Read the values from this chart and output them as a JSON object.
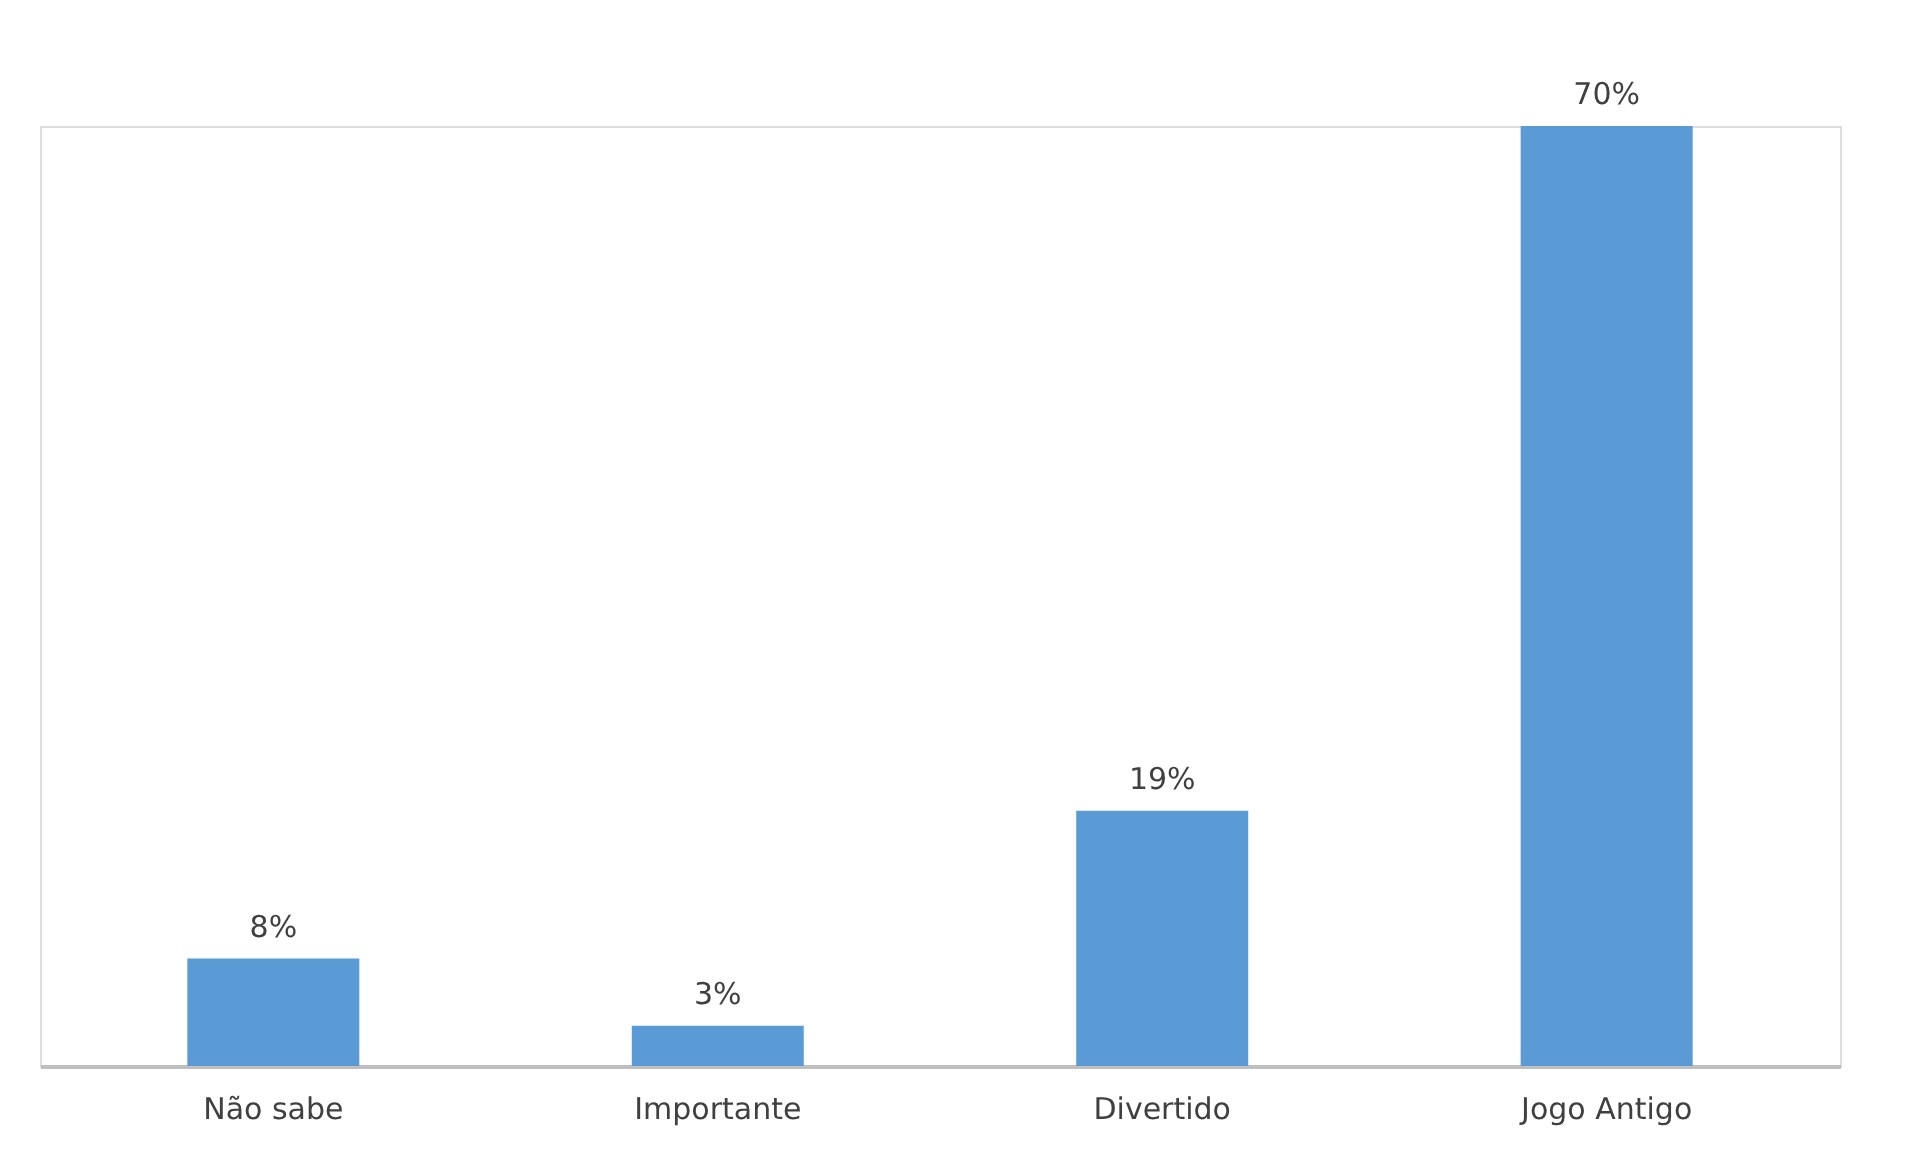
{
  "chart_data": {
    "type": "bar",
    "categories": [
      "Não sabe",
      "Importante",
      "Divertido",
      "Jogo Antigo"
    ],
    "values": [
      8,
      3,
      19,
      70
    ],
    "value_labels": [
      "8%",
      "3%",
      "19%",
      "70%"
    ],
    "color": "#5b9bd5"
  }
}
